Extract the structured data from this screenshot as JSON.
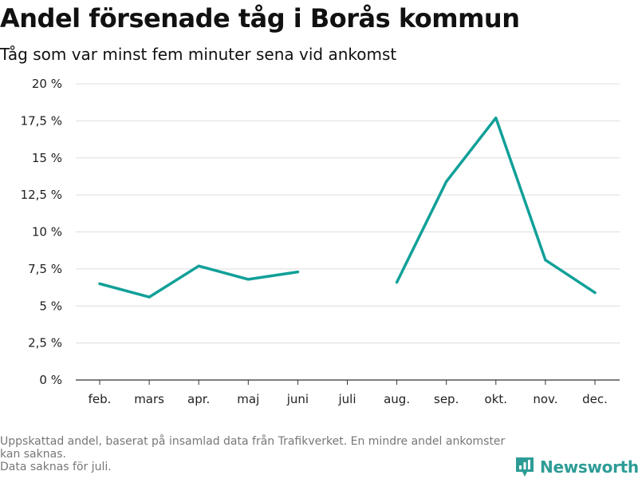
{
  "title": "Andel försenade tåg i Borås kommun",
  "subtitle": "Tåg som var minst fem minuter sena vid ankomst",
  "footer": {
    "line1": "Uppskattad andel, baserat på insamlad data från Trafikverket. En mindre andel ankomster kan saknas.",
    "line2": "Data saknas för juli."
  },
  "brand": {
    "name": "Newsworthy",
    "color": "#2e9c96"
  },
  "chart_data": {
    "type": "line",
    "categories": [
      "feb.",
      "mars",
      "apr.",
      "maj",
      "juni",
      "juli",
      "aug.",
      "sep.",
      "okt.",
      "nov.",
      "dec."
    ],
    "series": [
      {
        "values": [
          6.5,
          5.6,
          7.7,
          6.8,
          7.3,
          null,
          6.6,
          13.4,
          17.7,
          8.1,
          5.9
        ],
        "color": "#10a098"
      }
    ],
    "y_ticks": [
      0,
      2.5,
      5,
      7.5,
      10,
      12.5,
      15,
      17.5,
      20
    ],
    "y_tick_labels": [
      "0 %",
      "2,5 %",
      "5 %",
      "7,5 %",
      "10 %",
      "12,5 %",
      "15 %",
      "17,5 %",
      "20 %"
    ],
    "ylim": [
      0,
      20
    ],
    "grid": true,
    "legend": "none"
  }
}
